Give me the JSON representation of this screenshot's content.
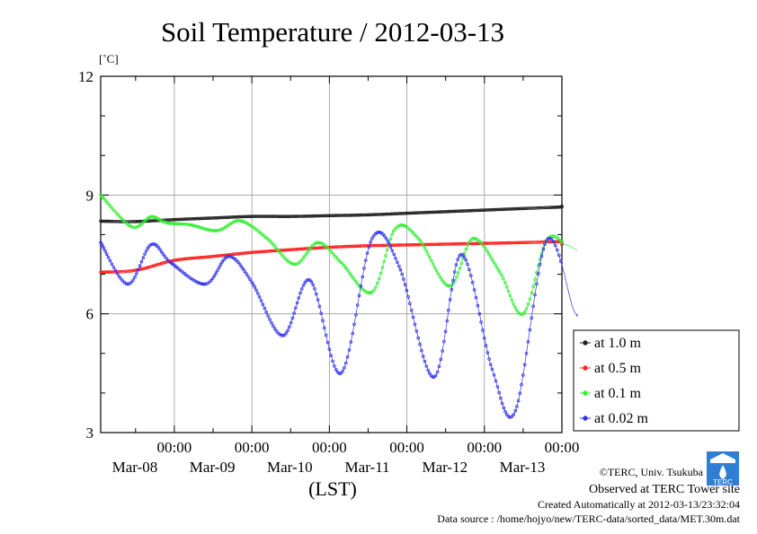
{
  "chart_data": {
    "type": "line",
    "title": "Soil Temperature / 2012-03-13",
    "ylabel": "[˚C]",
    "xlabel": "(LST)",
    "ylim": [
      3,
      12
    ],
    "yticks": [
      3,
      6,
      9,
      12
    ],
    "xlim": [
      -0.95,
      5.0
    ],
    "xticks": [
      {
        "x": 0,
        "time": "00:00",
        "date": "Mar-08"
      },
      {
        "x": 1,
        "time": "00:00",
        "date": "Mar-09"
      },
      {
        "x": 2,
        "time": "00:00",
        "date": "Mar-10"
      },
      {
        "x": 3,
        "time": "00:00",
        "date": "Mar-11"
      },
      {
        "x": 4,
        "time": "00:00",
        "date": "Mar-12"
      },
      {
        "x": 5,
        "time": "00:00",
        "date": "Mar-13"
      }
    ],
    "x_units": "days relative to 2012-03-08 00:00 LST",
    "grid": true,
    "legend_position": "right",
    "series": [
      {
        "name": "at 1.0 m",
        "color": "#222222",
        "x": [
          -0.95,
          -0.5,
          0,
          0.5,
          1,
          1.5,
          2,
          2.5,
          3,
          3.5,
          4,
          4.5,
          5,
          5.0
        ],
        "values": [
          8.34,
          8.33,
          8.38,
          8.42,
          8.46,
          8.46,
          8.48,
          8.5,
          8.54,
          8.58,
          8.62,
          8.66,
          8.7,
          8.72
        ]
      },
      {
        "name": "at 0.5 m",
        "color": "#ff2222",
        "x": [
          -0.95,
          -0.5,
          0,
          0.5,
          1,
          1.5,
          2,
          2.5,
          3,
          3.5,
          4,
          4.5,
          5,
          5.0
        ],
        "values": [
          7.05,
          7.1,
          7.35,
          7.45,
          7.55,
          7.62,
          7.68,
          7.72,
          7.74,
          7.76,
          7.78,
          7.8,
          7.82,
          7.75
        ]
      },
      {
        "name": "at 0.1 m",
        "color": "#33ee33",
        "x": [
          -0.95,
          -0.55,
          -0.3,
          -0.1,
          0.2,
          0.55,
          0.85,
          1.2,
          1.55,
          1.85,
          2.15,
          2.55,
          2.85,
          3.15,
          3.55,
          3.85,
          4.2,
          4.5,
          4.8,
          5.05,
          5.2
        ],
        "values": [
          9.0,
          8.2,
          8.45,
          8.3,
          8.25,
          8.1,
          8.35,
          7.9,
          7.25,
          7.8,
          7.3,
          6.55,
          8.15,
          7.9,
          6.7,
          7.9,
          7.05,
          6.0,
          7.85,
          7.75,
          7.6
        ]
      },
      {
        "name": "at 0.02 m",
        "color": "#3333ee",
        "x": [
          -0.95,
          -0.6,
          -0.3,
          -0.05,
          0.4,
          0.7,
          1.0,
          1.4,
          1.75,
          2.15,
          2.55,
          2.9,
          3.35,
          3.7,
          4.1,
          4.4,
          4.8,
          5.15,
          5.2
        ],
        "values": [
          7.8,
          6.75,
          7.75,
          7.3,
          6.75,
          7.45,
          6.8,
          5.45,
          6.85,
          4.5,
          7.9,
          7.2,
          4.4,
          7.5,
          4.6,
          3.55,
          7.85,
          6.1,
          6.0
        ]
      }
    ]
  },
  "credits": {
    "copyright": "©TERC, Univ. Tsukuba",
    "observed": "Observed at TERC Tower site",
    "created": "Created Automatically at 2012-03-13/23:32:04",
    "source": "Data source : /home/hojyo/new/TERC-data/sorted_data/MET.30m.dat",
    "logo_text": "TERC"
  }
}
